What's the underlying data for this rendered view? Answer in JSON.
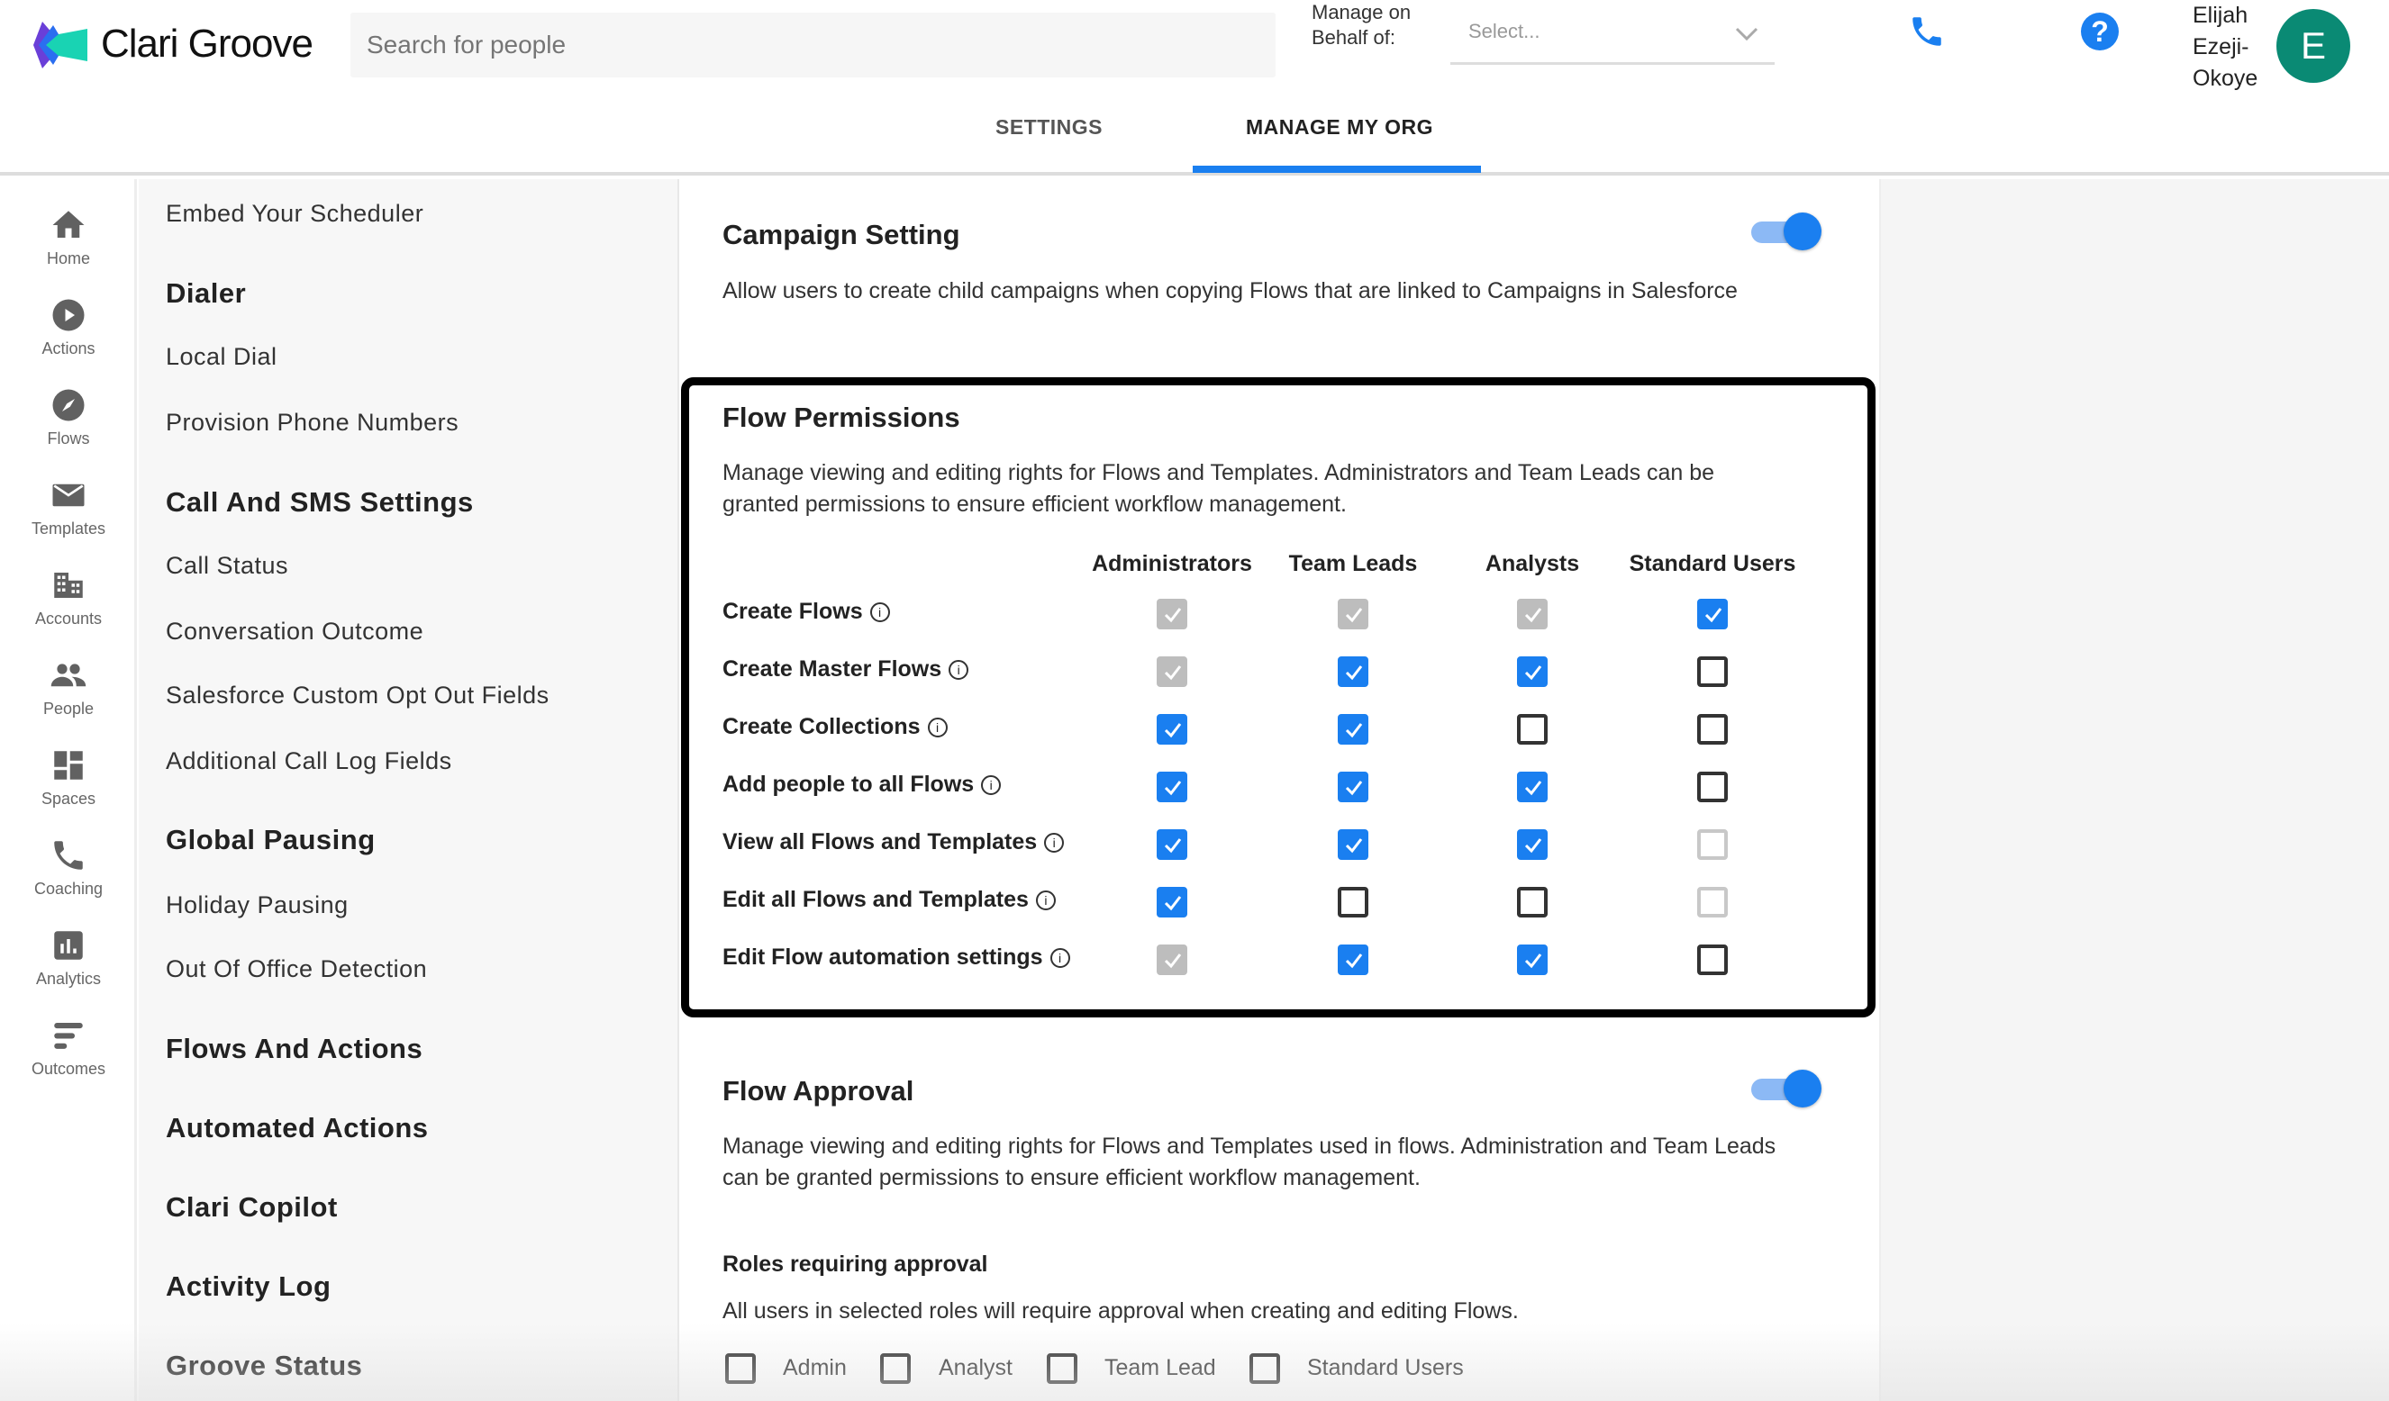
{
  "header": {
    "brand": "Clari Groove",
    "search_placeholder": "Search for people",
    "manage_on_behalf_label": "Manage on Behalf of:",
    "select_placeholder": "Select...",
    "user_name": "Elijah Ezeji-Okoye",
    "avatar_initial": "E",
    "avatar_color": "#0a8a74",
    "accent": "#1a7ff0"
  },
  "tabs": [
    {
      "label": "SETTINGS",
      "active": false
    },
    {
      "label": "MANAGE MY ORG",
      "active": true
    }
  ],
  "nav": [
    {
      "label": "Home",
      "icon": "home-icon"
    },
    {
      "label": "Actions",
      "icon": "play-circle-icon"
    },
    {
      "label": "Flows",
      "icon": "compass-icon"
    },
    {
      "label": "Templates",
      "icon": "envelope-icon"
    },
    {
      "label": "Accounts",
      "icon": "building-icon"
    },
    {
      "label": "People",
      "icon": "people-icon"
    },
    {
      "label": "Spaces",
      "icon": "dashboard-icon"
    },
    {
      "label": "Coaching",
      "icon": "phone-icon"
    },
    {
      "label": "Analytics",
      "icon": "bar-chart-icon"
    },
    {
      "label": "Outcomes",
      "icon": "sort-icon"
    }
  ],
  "settings_list": [
    {
      "label": "Embed Your Scheduler",
      "heading": false
    },
    {
      "label": "Dialer",
      "heading": true
    },
    {
      "label": "Local Dial",
      "heading": false
    },
    {
      "label": "Provision Phone Numbers",
      "heading": false
    },
    {
      "label": "Call And SMS Settings",
      "heading": true
    },
    {
      "label": "Call Status",
      "heading": false
    },
    {
      "label": "Conversation Outcome",
      "heading": false
    },
    {
      "label": "Salesforce Custom Opt Out Fields",
      "heading": false
    },
    {
      "label": "Additional Call Log Fields",
      "heading": false
    },
    {
      "label": "Global Pausing",
      "heading": true
    },
    {
      "label": "Holiday Pausing",
      "heading": false
    },
    {
      "label": "Out Of Office Detection",
      "heading": false
    },
    {
      "label": "Flows And Actions",
      "heading": true
    },
    {
      "label": "Automated Actions",
      "heading": true
    },
    {
      "label": "Clari Copilot",
      "heading": true
    },
    {
      "label": "Activity Log",
      "heading": true
    },
    {
      "label": "Groove Status",
      "heading": true
    }
  ],
  "campaign": {
    "title": "Campaign Setting",
    "description": "Allow users to create child campaigns when copying Flows that are linked to Campaigns in Salesforce",
    "enabled": true
  },
  "permissions": {
    "title": "Flow Permissions",
    "description_1": "Manage viewing and editing rights for Flows and Templates. Administrators and Team Leads can be",
    "description_2": "granted permissions to ensure efficient workflow management.",
    "columns": [
      "Administrators",
      "Team Leads",
      "Analysts",
      "Standard Users"
    ],
    "rows": [
      {
        "label": "Create Flows",
        "states": [
          "disabled-checked",
          "disabled-checked",
          "disabled-checked",
          "checked"
        ]
      },
      {
        "label": "Create Master Flows",
        "states": [
          "disabled-checked",
          "checked",
          "checked",
          "unchecked"
        ]
      },
      {
        "label": "Create Collections",
        "states": [
          "checked",
          "checked",
          "unchecked",
          "unchecked"
        ]
      },
      {
        "label": "Add people to all Flows",
        "states": [
          "checked",
          "checked",
          "checked",
          "unchecked"
        ]
      },
      {
        "label": "View all Flows and Templates",
        "states": [
          "checked",
          "checked",
          "checked",
          "disabled-unchecked"
        ]
      },
      {
        "label": "Edit all Flows and Templates",
        "states": [
          "checked",
          "unchecked",
          "unchecked",
          "disabled-unchecked"
        ]
      },
      {
        "label": "Edit Flow automation settings",
        "states": [
          "disabled-checked",
          "checked",
          "checked",
          "unchecked"
        ]
      }
    ]
  },
  "approval": {
    "title": "Flow Approval",
    "enabled": true,
    "description_1": "Manage viewing and editing rights for Flows and Templates used in flows. Administration and Team Leads",
    "description_2": "can be granted permissions to ensure efficient workflow management.",
    "roles_title": "Roles requiring approval",
    "roles_description": "All users in selected roles will require approval when creating and editing Flows.",
    "roles": [
      {
        "label": "Admin",
        "checked": false
      },
      {
        "label": "Analyst",
        "checked": false
      },
      {
        "label": "Team Lead",
        "checked": false
      },
      {
        "label": "Standard Users",
        "checked": false
      }
    ]
  }
}
